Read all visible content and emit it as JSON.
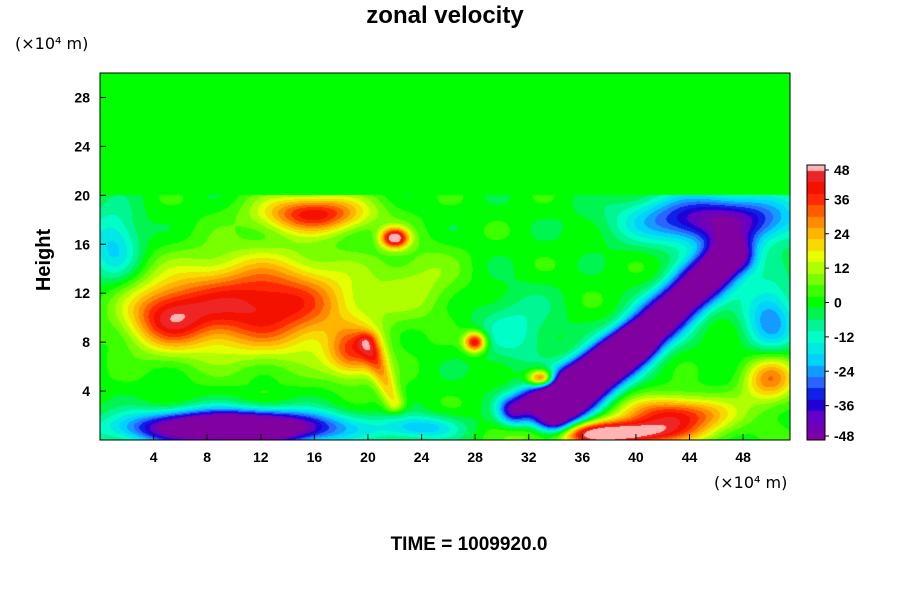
{
  "chart_data": {
    "type": "heatmap",
    "title": "zonal velocity",
    "ylabel": "Height",
    "xlabel": "",
    "x_unit": "(×10⁴ m)",
    "y_unit": "(×10⁴ m)",
    "footer": "TIME = 1009920.0",
    "xlim": [
      0,
      51.5
    ],
    "ylim": [
      0,
      30
    ],
    "x_ticks": [
      4,
      8,
      12,
      16,
      20,
      24,
      28,
      32,
      36,
      40,
      44,
      48
    ],
    "x_tick_labels": [
      "4",
      "8",
      "12",
      "16",
      "20",
      "24",
      "28",
      "32",
      "36",
      "40",
      "44",
      "48"
    ],
    "y_ticks": [
      4,
      8,
      12,
      16,
      20,
      24,
      28
    ],
    "y_tick_labels": [
      "4",
      "8",
      "12",
      "16",
      "20",
      "24",
      "28"
    ],
    "colorbar": {
      "min": -48,
      "max": 48,
      "ticks": [
        48,
        36,
        24,
        12,
        0,
        -12,
        -24,
        -36,
        -48
      ],
      "tick_labels": [
        "48",
        "36",
        "24",
        "12",
        "0",
        "-12",
        "-24",
        "-36",
        "-48"
      ]
    },
    "field_features": [
      {
        "type": "gauss",
        "x": 12,
        "y": 11,
        "sx": 7,
        "sy": 3.8,
        "amp": 44
      },
      {
        "type": "gauss",
        "x": 5,
        "y": 10,
        "sx": 3,
        "sy": 2.5,
        "amp": 30
      },
      {
        "type": "gauss",
        "x": 16,
        "y": 18.5,
        "sx": 4,
        "sy": 1.5,
        "amp": 40
      },
      {
        "type": "gauss",
        "x": 22,
        "y": 16.5,
        "sx": 1,
        "sy": 0.8,
        "amp": 50
      },
      {
        "type": "gauss",
        "x": 19,
        "y": 7,
        "sx": 2,
        "sy": 2,
        "amp": 30
      },
      {
        "type": "gauss",
        "x": 28,
        "y": 8,
        "sx": 0.8,
        "sy": 0.8,
        "amp": 45
      },
      {
        "type": "gauss",
        "x": 33,
        "y": 5,
        "sx": 1,
        "sy": 0.7,
        "amp": 50
      },
      {
        "type": "gauss",
        "x": 43,
        "y": 2,
        "sx": 4,
        "sy": 1.5,
        "amp": 40
      },
      {
        "type": "gauss",
        "x": 38,
        "y": 0.5,
        "sx": 5,
        "sy": 1,
        "amp": 55
      },
      {
        "type": "gauss",
        "x": 50,
        "y": 5,
        "sx": 2,
        "sy": 2,
        "amp": 30
      },
      {
        "type": "gauss",
        "x": 10,
        "y": 1,
        "sx": 7,
        "sy": 1.3,
        "amp": -85
      },
      {
        "type": "gauss",
        "x": 24,
        "y": 1,
        "sx": 3,
        "sy": 1,
        "amp": -20
      },
      {
        "type": "gauss",
        "x": 1,
        "y": 16,
        "sx": 2,
        "sy": 3,
        "amp": -20
      },
      {
        "type": "gauss",
        "x": 46,
        "y": 18,
        "sx": 6,
        "sy": 2,
        "amp": -45
      },
      {
        "type": "gauss",
        "x": 50,
        "y": 10,
        "sx": 2,
        "sy": 3,
        "amp": -25
      },
      {
        "type": "gauss",
        "x": 31,
        "y": 9,
        "sx": 3,
        "sy": 3,
        "amp": -12
      },
      {
        "type": "gauss",
        "x": 24,
        "y": 13,
        "sx": 3,
        "sy": 3,
        "amp": 10
      },
      {
        "type": "band",
        "x0": 34,
        "y0": 2,
        "x1": 47,
        "y1": 15,
        "width": 1.6,
        "amp": -72
      },
      {
        "type": "band",
        "x0": 31,
        "y0": 2.5,
        "x1": 40,
        "y1": 8,
        "width": 1.2,
        "amp": -45
      },
      {
        "type": "band",
        "x0": 20,
        "y0": 8,
        "x1": 22,
        "y1": 3,
        "width": 0.8,
        "amp": 20
      }
    ],
    "upper_layer_value": 0,
    "interface_height": 20
  }
}
